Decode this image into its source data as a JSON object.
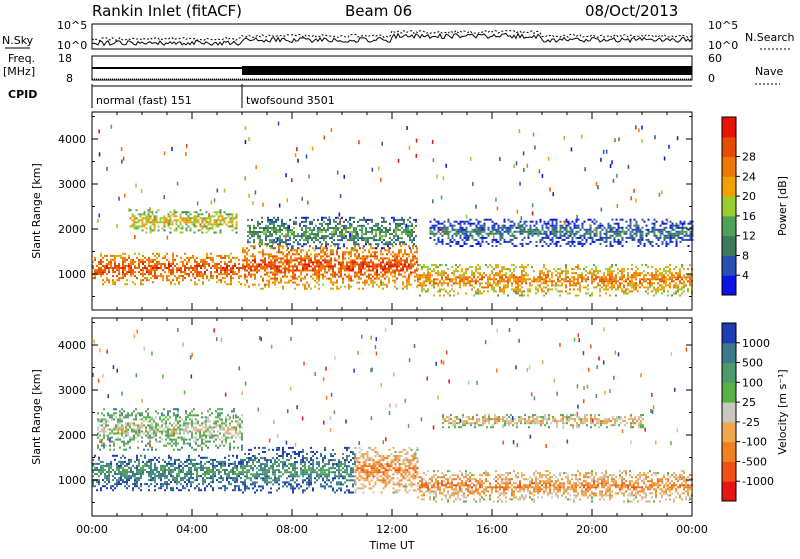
{
  "header": {
    "station": "Rankin Inlet (fitACF)",
    "beam": "Beam 06",
    "date": "08/Oct/2013"
  },
  "strips": {
    "nsky": {
      "label": "N.Sky",
      "tick_top": "10^5",
      "tick_bottom": "10^0",
      "right_label": "N.Search",
      "right_tick_top": "10^5",
      "right_tick_bottom": "10^0"
    },
    "freq": {
      "label_line1": "Freq.",
      "label_line2": "[MHz]",
      "tick_top": "18",
      "tick_bottom": "8",
      "right_label": "Nave",
      "right_tick_top": "60",
      "right_tick_bottom": "0"
    },
    "cpid": {
      "label": "CPID",
      "modes": [
        {
          "name": "normal (fast) 151",
          "start_hour": 0.0,
          "end_hour": 6.0
        },
        {
          "name": "twofsound 3501",
          "start_hour": 6.0,
          "end_hour": 24.0
        }
      ]
    }
  },
  "chart_data": [
    {
      "type": "heatmap",
      "panel": "power",
      "xlabel": "",
      "ylabel": "Slant Range [km]",
      "xlim_hours": [
        0,
        24
      ],
      "ylim": [
        200,
        4600
      ],
      "yticks": [
        1000,
        2000,
        3000,
        4000
      ],
      "colorbar": {
        "label": "Power [dB]",
        "ticks": [
          "4",
          "8",
          "12",
          "16",
          "20",
          "24",
          "28"
        ],
        "colors": [
          "#0a14e6",
          "#2850b4",
          "#3c7a5a",
          "#4ea05a",
          "#9acd32",
          "#f0a000",
          "#f07800",
          "#e64b00",
          "#e61400"
        ]
      },
      "bands": [
        {
          "start_hour": 0.0,
          "end_hour": 6.0,
          "center_km": 1100,
          "width_km": 350,
          "level": 7
        },
        {
          "start_hour": 1.5,
          "end_hour": 5.8,
          "center_km": 2150,
          "width_km": 250,
          "level": 5
        },
        {
          "start_hour": 6.0,
          "end_hour": 13.0,
          "center_km": 1150,
          "width_km": 500,
          "level": 7
        },
        {
          "start_hour": 6.2,
          "end_hour": 13.0,
          "center_km": 1900,
          "width_km": 350,
          "level": 3
        },
        {
          "start_hour": 13.0,
          "end_hour": 24.0,
          "center_km": 850,
          "width_km": 350,
          "level": 6
        },
        {
          "start_hour": 13.5,
          "end_hour": 24.0,
          "center_km": 1900,
          "width_km": 300,
          "level": 2
        }
      ]
    },
    {
      "type": "heatmap",
      "panel": "velocity",
      "xlabel": "Time UT",
      "ylabel": "Slant Range [km]",
      "xlim_hours": [
        0,
        24
      ],
      "ylim": [
        200,
        4600
      ],
      "yticks": [
        1000,
        2000,
        3000,
        4000
      ],
      "xticks": [
        "00:00",
        "04:00",
        "08:00",
        "12:00",
        "16:00",
        "20:00",
        "00:00"
      ],
      "colorbar": {
        "label": "Velocity [m s⁻¹]",
        "ticks": [
          "1000",
          "500",
          "100",
          "25",
          "-25",
          "-100",
          "-500",
          "-1000"
        ],
        "colors": [
          "#1e3cb4",
          "#3a7a8c",
          "#4e9a6a",
          "#59b04a",
          "#c8c8c0",
          "#f0a850",
          "#f08020",
          "#f05014",
          "#e61414"
        ]
      },
      "bands": [
        {
          "start_hour": 0.0,
          "end_hour": 6.0,
          "center_km": 1150,
          "width_km": 400,
          "level": 2
        },
        {
          "start_hour": 0.2,
          "end_hour": 6.0,
          "center_km": 2100,
          "width_km": 450,
          "level": 4
        },
        {
          "start_hour": 6.0,
          "end_hour": 10.5,
          "center_km": 1200,
          "width_km": 500,
          "level": 2
        },
        {
          "start_hour": 10.5,
          "end_hour": 13.0,
          "center_km": 1200,
          "width_km": 500,
          "level": 6
        },
        {
          "start_hour": 13.0,
          "end_hour": 24.0,
          "center_km": 850,
          "width_km": 350,
          "level": 6
        },
        {
          "start_hour": 14.0,
          "end_hour": 22.0,
          "center_km": 2300,
          "width_km": 150,
          "level": 5
        }
      ]
    }
  ]
}
